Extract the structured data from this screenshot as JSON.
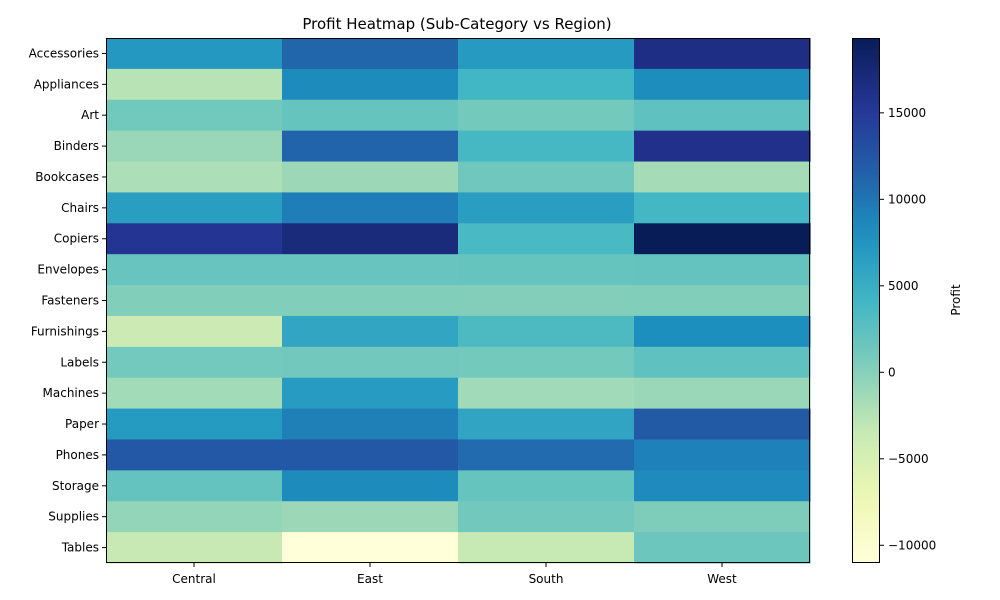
{
  "chart_data": {
    "type": "heatmap",
    "title": "Profit Heatmap (Sub-Category vs Region)",
    "xlabel": "",
    "ylabel": "",
    "columns": [
      "Central",
      "East",
      "South",
      "West"
    ],
    "rows": [
      "Accessories",
      "Appliances",
      "Art",
      "Binders",
      "Bookcases",
      "Chairs",
      "Copiers",
      "Envelopes",
      "Fasteners",
      "Furnishings",
      "Labels",
      "Machines",
      "Paper",
      "Phones",
      "Storage",
      "Supplies",
      "Tables"
    ],
    "values": [
      [
        7252,
        11196,
        7005,
        16485
      ],
      [
        -2639,
        8391,
        4124,
        8262
      ],
      [
        1195,
        1900,
        1059,
        2327
      ],
      [
        -1044,
        11268,
        3901,
        16097
      ],
      [
        -1998,
        -1168,
        1339,
        -1647
      ],
      [
        6593,
        9357,
        6612,
        4028
      ],
      [
        15609,
        17023,
        3659,
        19327
      ],
      [
        1777,
        1812,
        1908,
        2006
      ],
      [
        236,
        264,
        174,
        276
      ],
      [
        -3906,
        5881,
        3443,
        8092
      ],
      [
        1073,
        1129,
        1041,
        2303
      ],
      [
        -1486,
        6929,
        -1438,
        -1000
      ],
      [
        6954,
        9315,
        5947,
        12119
      ],
      [
        12323,
        12315,
        10767,
        9110
      ],
      [
        1969,
        8390,
        1888,
        8470
      ],
      [
        -662,
        -1155,
        1133,
        405
      ],
      [
        -3560,
        -11025,
        -3473,
        1483
      ]
    ],
    "colormap": "YlGnBu",
    "vmin": -11025,
    "vmax": 19327,
    "colorbar": {
      "label": "Profit",
      "ticks": [
        -10000,
        -5000,
        0,
        5000,
        10000,
        15000
      ]
    },
    "grid": false
  }
}
